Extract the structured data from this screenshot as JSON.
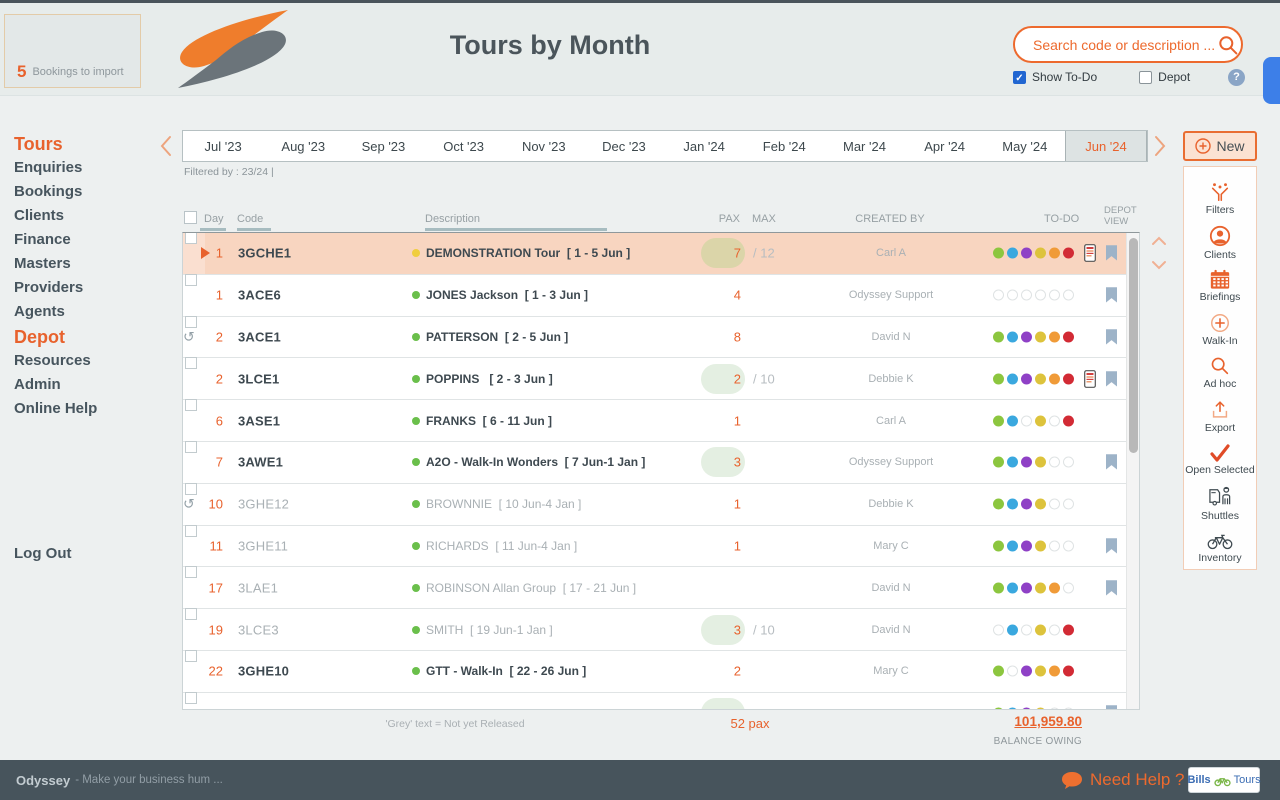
{
  "header": {
    "import_count": "5",
    "import_label": "Bookings to import",
    "title": "Tours by Month",
    "search_placeholder": "Search code or description ...",
    "show_todo": "Show To-Do",
    "depot": "Depot",
    "help": "?"
  },
  "nav": {
    "items": [
      {
        "label": "Tours",
        "accent": true
      },
      {
        "label": "Enquiries",
        "accent": false
      },
      {
        "label": "Bookings",
        "accent": false
      },
      {
        "label": "Clients",
        "accent": false
      },
      {
        "label": "Finance",
        "accent": false
      },
      {
        "label": "Masters",
        "accent": false
      },
      {
        "label": "Providers",
        "accent": false
      },
      {
        "label": "Agents",
        "accent": false
      },
      {
        "label": "Depot",
        "accent": true
      },
      {
        "label": "Resources",
        "accent": false
      },
      {
        "label": "Admin",
        "accent": false
      },
      {
        "label": "Online Help",
        "accent": false
      }
    ],
    "logout": "Log Out"
  },
  "months": {
    "tabs": [
      "Jul '23",
      "Aug '23",
      "Sep '23",
      "Oct '23",
      "Nov '23",
      "Dec '23",
      "Jan '24",
      "Feb '24",
      "Mar '24",
      "Apr '24",
      "May '24",
      "Jun '24"
    ],
    "active": "Jun '24",
    "filtered_by": "Filtered by : 23/24 |"
  },
  "table": {
    "headers": {
      "day": "Day",
      "code": "Code",
      "description": "Description",
      "pax": "PAX",
      "max": "MAX",
      "created_by": "CREATED BY",
      "todo": "TO-DO",
      "depot_view_1": "DEPOT",
      "depot_view_2": "VIEW"
    },
    "rows": [
      {
        "day": "1",
        "code": "3GCHE1",
        "released": true,
        "selected": true,
        "play": true,
        "history": false,
        "dot": "#f0ce3e",
        "description": "DEMONSTRATION Tour  [ 1 - 5 Jun ]",
        "pax": "7",
        "pill": "tan",
        "max": "/ 12",
        "created_by": "Carl A",
        "todo": [
          1,
          1,
          1,
          1,
          1,
          1
        ],
        "phone": true,
        "bookmark": true,
        "partial": false
      },
      {
        "day": "1",
        "code": "3ACE6",
        "released": true,
        "selected": false,
        "play": false,
        "history": false,
        "dot": "#6abf4b",
        "description": "JONES Jackson  [ 1 - 3 Jun ]",
        "pax": "4",
        "pill": null,
        "max": "",
        "created_by": "Odyssey Support",
        "todo": [
          0,
          0,
          0,
          0,
          0,
          0
        ],
        "phone": false,
        "bookmark": true,
        "partial": false
      },
      {
        "day": "2",
        "code": "3ACE1",
        "released": true,
        "selected": false,
        "play": false,
        "history": true,
        "dot": "#6abf4b",
        "description": "PATTERSON  [ 2 - 5 Jun ]",
        "pax": "8",
        "pill": null,
        "max": "",
        "created_by": "David N",
        "todo": [
          1,
          1,
          1,
          1,
          1,
          1
        ],
        "phone": false,
        "bookmark": true,
        "partial": false
      },
      {
        "day": "2",
        "code": "3LCE1",
        "released": true,
        "selected": false,
        "play": false,
        "history": false,
        "dot": "#6abf4b",
        "description": "POPPINS   [ 2 - 3 Jun ]",
        "pax": "2",
        "pill": "green",
        "max": "/ 10",
        "created_by": "Debbie K",
        "todo": [
          1,
          1,
          1,
          1,
          1,
          1
        ],
        "phone": true,
        "bookmark": true,
        "partial": false
      },
      {
        "day": "6",
        "code": "3ASE1",
        "released": true,
        "selected": false,
        "play": false,
        "history": false,
        "dot": "#6abf4b",
        "description": "FRANKS  [ 6 - 11 Jun ]",
        "pax": "1",
        "pill": null,
        "max": "",
        "created_by": "Carl A",
        "todo": [
          1,
          1,
          0,
          1,
          0,
          1
        ],
        "phone": false,
        "bookmark": false,
        "partial": false
      },
      {
        "day": "7",
        "code": "3AWE1",
        "released": true,
        "selected": false,
        "play": false,
        "history": false,
        "dot": "#6abf4b",
        "description": "A2O - Walk-In Wonders  [ 7 Jun-1 Jan ]",
        "pax": "3",
        "pill": "green",
        "max": "",
        "created_by": "Odyssey Support",
        "todo": [
          1,
          1,
          1,
          1,
          0,
          0
        ],
        "phone": false,
        "bookmark": true,
        "partial": false
      },
      {
        "day": "10",
        "code": "3GHE12",
        "released": false,
        "selected": false,
        "play": false,
        "history": true,
        "dot": "#6abf4b",
        "description": "BROWNNIE  [ 10 Jun-4 Jan ]",
        "pax": "1",
        "pill": null,
        "max": "",
        "created_by": "Debbie K",
        "todo": [
          1,
          1,
          1,
          1,
          0,
          0
        ],
        "phone": false,
        "bookmark": false,
        "partial": false
      },
      {
        "day": "11",
        "code": "3GHE11",
        "released": false,
        "selected": false,
        "play": false,
        "history": false,
        "dot": "#6abf4b",
        "description": "RICHARDS  [ 11 Jun-4 Jan ]",
        "pax": "1",
        "pill": null,
        "max": "",
        "created_by": "Mary C",
        "todo": [
          1,
          1,
          1,
          1,
          0,
          0
        ],
        "phone": false,
        "bookmark": true,
        "partial": false
      },
      {
        "day": "17",
        "code": "3LAE1",
        "released": false,
        "selected": false,
        "play": false,
        "history": false,
        "dot": "#6abf4b",
        "description": "ROBINSON Allan Group  [ 17 - 21 Jun ]",
        "pax": "",
        "pill": null,
        "max": "",
        "created_by": "David N",
        "todo": [
          1,
          1,
          1,
          1,
          1,
          0
        ],
        "phone": false,
        "bookmark": true,
        "partial": false
      },
      {
        "day": "19",
        "code": "3LCE3",
        "released": false,
        "selected": false,
        "play": false,
        "history": false,
        "dot": "#6abf4b",
        "description": "SMITH  [ 19 Jun-1 Jan ]",
        "pax": "3",
        "pill": "green",
        "max": "/ 10",
        "created_by": "David N",
        "todo": [
          0,
          1,
          0,
          1,
          0,
          1
        ],
        "phone": false,
        "bookmark": false,
        "partial": false
      },
      {
        "day": "22",
        "code": "3GHE10",
        "released": true,
        "selected": false,
        "play": false,
        "history": false,
        "dot": "#6abf4b",
        "description": "GTT - Walk-In  [ 22 - 26 Jun ]",
        "pax": "2",
        "pill": null,
        "max": "",
        "created_by": "Mary C",
        "todo": [
          1,
          0,
          1,
          1,
          1,
          1
        ],
        "phone": false,
        "bookmark": false,
        "partial": false
      },
      {
        "day": "",
        "code": "",
        "released": false,
        "selected": false,
        "play": false,
        "history": false,
        "dot": "#6abf4b",
        "description": "",
        "pax": "",
        "pill": "green",
        "max": "",
        "created_by": "",
        "todo": [
          1,
          1,
          1,
          1,
          0,
          0
        ],
        "phone": false,
        "bookmark": true,
        "partial": true
      }
    ]
  },
  "summary": {
    "note": "'Grey' text = Not yet Released",
    "pax_total": "52 pax",
    "balance": "101,959.80",
    "balance_label": "BALANCE OWING"
  },
  "actions": {
    "new_label": "New",
    "items": [
      {
        "label": "Filters",
        "icon": "filter"
      },
      {
        "label": "Clients",
        "icon": "clients"
      },
      {
        "label": "Briefings",
        "icon": "calendar"
      },
      {
        "label": "Walk-In",
        "icon": "circle-plus"
      },
      {
        "label": "Ad hoc",
        "icon": "magnifier"
      },
      {
        "label": "Export",
        "icon": "export"
      },
      {
        "label": "Open Selected",
        "icon": "check"
      },
      {
        "label": "Shuttles",
        "icon": "shuttle"
      },
      {
        "label": "Inventory",
        "icon": "bicycle"
      }
    ]
  },
  "statusbar": {
    "brand": "Odyssey",
    "tagline": "- Make your business hum ...",
    "help": "Need Help ?",
    "logo_bills": "Bills",
    "logo_tours": "Tours"
  },
  "colors": {
    "accent": "#e8622d",
    "todo": [
      "#8cc63f",
      "#3aa8df",
      "#8f41c6",
      "#ddc33c",
      "#f09b38",
      "#d22b35"
    ]
  }
}
